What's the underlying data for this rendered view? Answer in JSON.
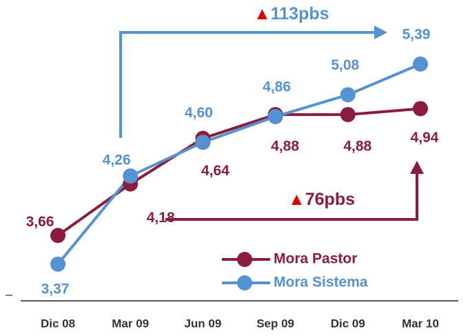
{
  "chart_data": {
    "type": "line",
    "categories": [
      "Dic 08",
      "Mar 09",
      "Jun 09",
      "Sep 09",
      "Dic 09",
      "Mar 10"
    ],
    "series": [
      {
        "name": "Mora Pastor",
        "color": "#8c1c3c",
        "values": [
          3.66,
          4.18,
          4.64,
          4.88,
          4.88,
          4.94
        ],
        "value_labels": [
          "3,66",
          "4,18",
          "4,64",
          "4,88",
          "4,88",
          "4,94"
        ]
      },
      {
        "name": "Mora Sistema",
        "color": "#5592d4",
        "values": [
          3.37,
          4.26,
          4.6,
          4.86,
          5.08,
          5.39
        ],
        "value_labels": [
          "3,37",
          "4,26",
          "4,60",
          "4,86",
          "5,08",
          "5,39"
        ]
      }
    ],
    "ylim": [
      3.0,
      5.8
    ],
    "annotations": [
      {
        "marker": "▲",
        "text": "113pbs"
      },
      {
        "marker": "▲",
        "text": "76pbs"
      }
    ]
  }
}
